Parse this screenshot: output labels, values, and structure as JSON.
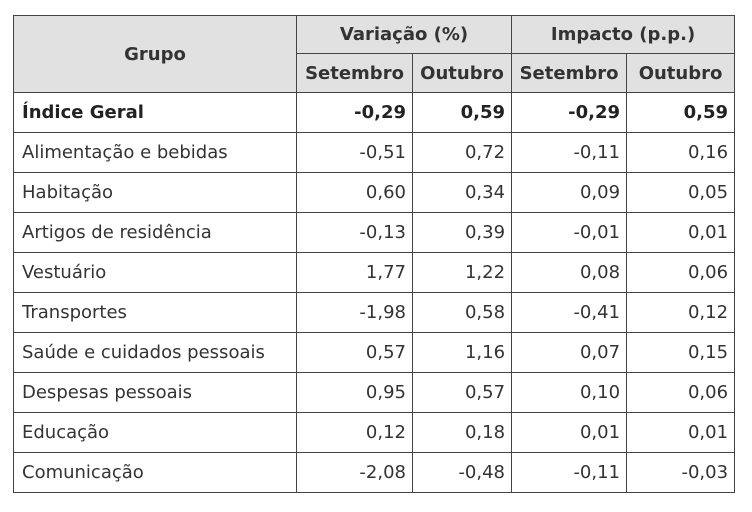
{
  "header": {
    "group": "Grupo",
    "variacao": "Variação (%)",
    "impacto": "Impacto (p.p.)",
    "setembro": "Setembro",
    "outubro": "Outubro"
  },
  "rows": [
    {
      "name": "Índice Geral",
      "var_set": "-0,29",
      "var_out": "0,59",
      "imp_set": "-0,29",
      "imp_out": "0,59"
    },
    {
      "name": "Alimentação e bebidas",
      "var_set": "-0,51",
      "var_out": "0,72",
      "imp_set": "-0,11",
      "imp_out": "0,16"
    },
    {
      "name": "Habitação",
      "var_set": "0,60",
      "var_out": "0,34",
      "imp_set": "0,09",
      "imp_out": "0,05"
    },
    {
      "name": "Artigos de residência",
      "var_set": "-0,13",
      "var_out": "0,39",
      "imp_set": "-0,01",
      "imp_out": "0,01"
    },
    {
      "name": "Vestuário",
      "var_set": "1,77",
      "var_out": "1,22",
      "imp_set": "0,08",
      "imp_out": "0,06"
    },
    {
      "name": "Transportes",
      "var_set": "-1,98",
      "var_out": "0,58",
      "imp_set": "-0,41",
      "imp_out": "0,12"
    },
    {
      "name": "Saúde e cuidados pessoais",
      "var_set": "0,57",
      "var_out": "1,16",
      "imp_set": "0,07",
      "imp_out": "0,15"
    },
    {
      "name": "Despesas pessoais",
      "var_set": "0,95",
      "var_out": "0,57",
      "imp_set": "0,10",
      "imp_out": "0,06"
    },
    {
      "name": "Educação",
      "var_set": "0,12",
      "var_out": "0,18",
      "imp_set": "0,01",
      "imp_out": "0,01"
    },
    {
      "name": "Comunicação",
      "var_set": "-2,08",
      "var_out": "-0,48",
      "imp_set": "-0,11",
      "imp_out": "-0,03"
    }
  ]
}
